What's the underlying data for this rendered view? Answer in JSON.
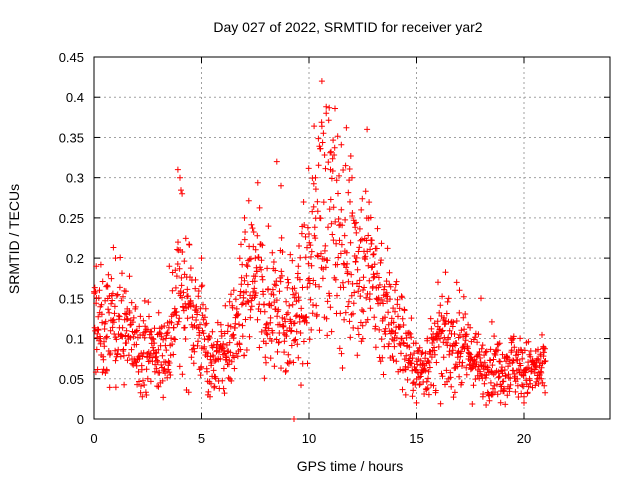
{
  "chart_data": {
    "type": "scatter",
    "title": "Day 027 of 2022, SRMTID for receiver yar2",
    "xlabel": "GPS time / hours",
    "ylabel": "SRMTID / TECUs",
    "xlim": [
      0,
      24
    ],
    "ylim": [
      0,
      0.45
    ],
    "x_ticks": [
      0,
      5,
      10,
      15,
      20
    ],
    "x_tick_labels": [
      "0",
      "5",
      "10",
      "15",
      "20"
    ],
    "y_ticks": [
      0,
      0.05,
      0.1,
      0.15,
      0.2,
      0.25,
      0.3,
      0.35,
      0.4,
      0.45
    ],
    "y_tick_labels": [
      "0",
      "0.05",
      "0.1",
      "0.15",
      "0.2",
      "0.25",
      "0.3",
      "0.35",
      "0.4",
      "0.45"
    ],
    "grid": true,
    "marker": "+",
    "series": [
      {
        "name": "SRMTID",
        "color": "#ff0000",
        "envelope_x": [
          0,
          0.5,
          1,
          1.5,
          2,
          2.5,
          3,
          3.5,
          3.8,
          4,
          4.5,
          5,
          5.5,
          6,
          6.5,
          7,
          7.5,
          8,
          8.5,
          9,
          9.5,
          10,
          10.5,
          11,
          11.5,
          12,
          12.5,
          13,
          13.5,
          14,
          14.5,
          15,
          15.5,
          16,
          16.5,
          17,
          17.5,
          18,
          18.5,
          19,
          19.5,
          20,
          20.5,
          21
        ],
        "envelope_y": [
          0.12,
          0.11,
          0.13,
          0.11,
          0.09,
          0.09,
          0.08,
          0.09,
          0.15,
          0.16,
          0.14,
          0.11,
          0.07,
          0.08,
          0.1,
          0.14,
          0.18,
          0.13,
          0.16,
          0.12,
          0.13,
          0.18,
          0.26,
          0.25,
          0.22,
          0.21,
          0.19,
          0.18,
          0.14,
          0.12,
          0.09,
          0.06,
          0.07,
          0.09,
          0.1,
          0.09,
          0.08,
          0.06,
          0.07,
          0.06,
          0.07,
          0.06,
          0.06,
          0.06
        ],
        "values": [
          [
            0.1,
            0.19
          ],
          [
            0.3,
            0.1
          ],
          [
            0.6,
            0.06
          ],
          [
            1.0,
            0.2
          ],
          [
            1.5,
            0.13
          ],
          [
            2.0,
            0.11
          ],
          [
            2.5,
            0.05
          ],
          [
            3.0,
            0.04
          ],
          [
            3.5,
            0.19
          ],
          [
            3.9,
            0.31
          ],
          [
            4.0,
            0.3
          ],
          [
            4.1,
            0.28
          ],
          [
            4.5,
            0.14
          ],
          [
            5.0,
            0.2
          ],
          [
            5.3,
            0.03
          ],
          [
            6.0,
            0.08
          ],
          [
            6.5,
            0.16
          ],
          [
            7.0,
            0.25
          ],
          [
            7.5,
            0.2
          ],
          [
            8.0,
            0.07
          ],
          [
            8.5,
            0.32
          ],
          [
            8.7,
            0.29
          ],
          [
            9.0,
            0.07
          ],
          [
            9.3,
            0.0
          ],
          [
            9.5,
            0.19
          ],
          [
            10.0,
            0.23
          ],
          [
            10.3,
            0.3
          ],
          [
            10.6,
            0.42
          ],
          [
            10.8,
            0.38
          ],
          [
            11.0,
            0.31
          ],
          [
            11.5,
            0.26
          ],
          [
            12.0,
            0.3
          ],
          [
            12.5,
            0.1
          ],
          [
            12.7,
            0.36
          ],
          [
            13.0,
            0.18
          ],
          [
            13.5,
            0.09
          ],
          [
            14.0,
            0.16
          ],
          [
            14.5,
            0.03
          ],
          [
            15.0,
            0.02
          ],
          [
            15.5,
            0.1
          ],
          [
            16.0,
            0.17
          ],
          [
            16.5,
            0.05
          ],
          [
            17.0,
            0.16
          ],
          [
            17.5,
            0.08
          ],
          [
            18.0,
            0.15
          ],
          [
            18.5,
            0.03
          ],
          [
            19.0,
            0.08
          ],
          [
            19.5,
            0.1
          ],
          [
            20.0,
            0.02
          ],
          [
            20.5,
            0.07
          ],
          [
            20.8,
            0.05
          ],
          [
            20.9,
            0.09
          ]
        ]
      }
    ]
  }
}
